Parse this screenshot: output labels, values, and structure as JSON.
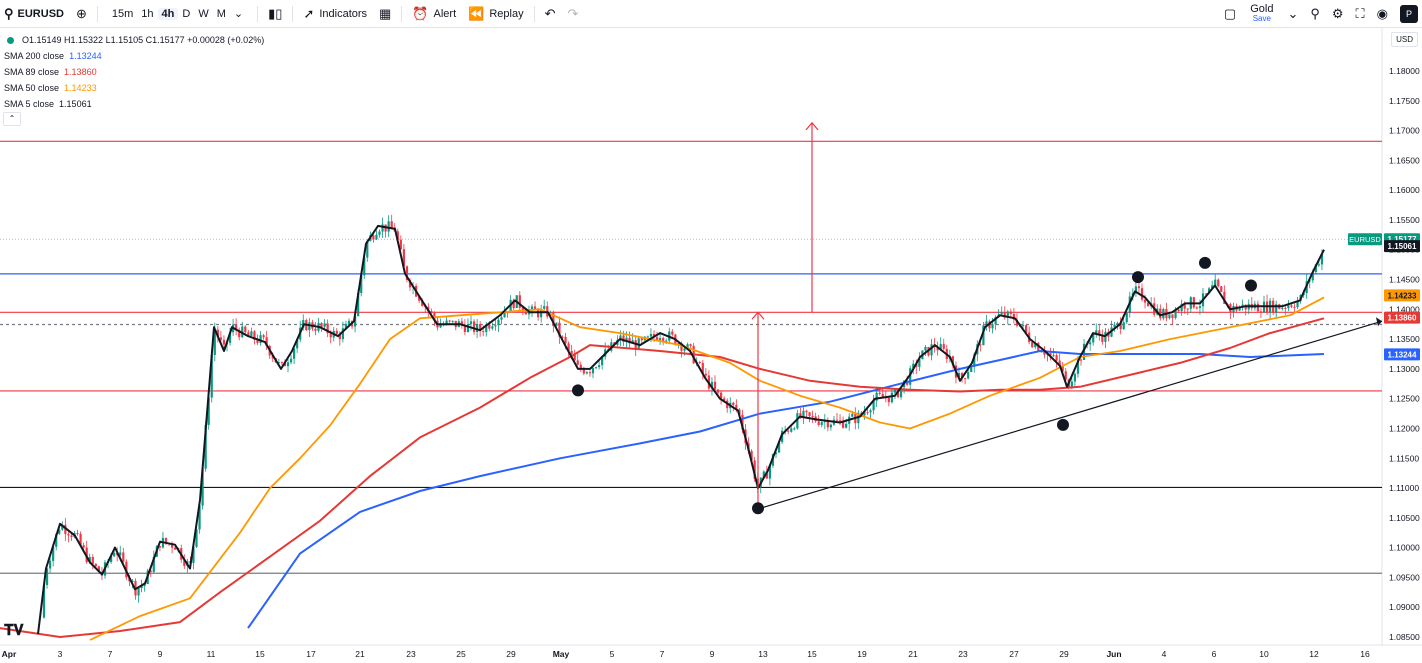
{
  "toolbar": {
    "symbol": "EURUSD",
    "intervals": [
      "15m",
      "1h",
      "4h",
      "D",
      "W",
      "M"
    ],
    "active_interval": "4h",
    "indicators_label": "Indicators",
    "alert_label": "Alert",
    "replay_label": "Replay",
    "layout_name": "Gold",
    "save_label": "Save",
    "avatar_letter": "P"
  },
  "legend": {
    "ohlc": "O1.15149 H1.15322 L1.15105 C1.15177 +0.00028 (+0.02%)",
    "sma_rows": [
      {
        "label": "SMA 200 close",
        "value": "1.13244",
        "color": "#2962ff"
      },
      {
        "label": "SMA 89 close",
        "value": "1.13860",
        "color": "#e53935"
      },
      {
        "label": "SMA 50 close",
        "value": "1.14233",
        "color": "#ff9800"
      },
      {
        "label": "SMA 5 close",
        "value": "1.15061",
        "color": "#131722"
      }
    ]
  },
  "currency": "USD",
  "colors": {
    "up": "#089981",
    "down": "#f23645",
    "sma200": "#2962ff",
    "sma89": "#e53935",
    "sma50": "#ff9800",
    "sma5": "#131722"
  },
  "chart_data": {
    "type": "candlestick",
    "symbol": "EURUSD",
    "ylim": [
      1.0845,
      1.1865
    ],
    "y_ticks": [
      "1.18000",
      "1.17500",
      "1.17000",
      "1.16500",
      "1.16000",
      "1.15500",
      "1.15000",
      "1.14500",
      "1.14000",
      "1.13500",
      "1.13000",
      "1.12500",
      "1.12000",
      "1.11500",
      "1.11000",
      "1.10500",
      "1.10000",
      "1.09500",
      "1.09000",
      "1.08500"
    ],
    "x_ticks": [
      "Apr",
      "3",
      "7",
      "9",
      "11",
      "15",
      "17",
      "21",
      "23",
      "25",
      "29",
      "May",
      "5",
      "7",
      "9",
      "13",
      "15",
      "19",
      "21",
      "23",
      "27",
      "29",
      "Jun",
      "4",
      "6",
      "10",
      "12",
      "16"
    ],
    "close_path": [
      [
        0,
        1.0845
      ],
      [
        38,
        1.0855
      ],
      [
        46,
        1.0965
      ],
      [
        60,
        1.104
      ],
      [
        75,
        1.102
      ],
      [
        90,
        1.0975
      ],
      [
        102,
        1.0955
      ],
      [
        115,
        1.1
      ],
      [
        135,
        1.093
      ],
      [
        145,
        1.094
      ],
      [
        160,
        1.101
      ],
      [
        175,
        1.1005
      ],
      [
        190,
        1.0965
      ],
      [
        200,
        1.108
      ],
      [
        214,
        1.137
      ],
      [
        224,
        1.133
      ],
      [
        232,
        1.137
      ],
      [
        248,
        1.1355
      ],
      [
        265,
        1.1345
      ],
      [
        281,
        1.13
      ],
      [
        292,
        1.133
      ],
      [
        304,
        1.1375
      ],
      [
        320,
        1.137
      ],
      [
        338,
        1.1355
      ],
      [
        354,
        1.138
      ],
      [
        366,
        1.151
      ],
      [
        378,
        1.154
      ],
      [
        395,
        1.1535
      ],
      [
        405,
        1.146
      ],
      [
        420,
        1.142
      ],
      [
        437,
        1.1375
      ],
      [
        460,
        1.1375
      ],
      [
        480,
        1.1365
      ],
      [
        500,
        1.139
      ],
      [
        515,
        1.1415
      ],
      [
        530,
        1.1395
      ],
      [
        548,
        1.1395
      ],
      [
        565,
        1.134
      ],
      [
        578,
        1.13
      ],
      [
        590,
        1.13
      ],
      [
        605,
        1.1325
      ],
      [
        620,
        1.135
      ],
      [
        640,
        1.134
      ],
      [
        660,
        1.136
      ],
      [
        675,
        1.135
      ],
      [
        690,
        1.133
      ],
      [
        705,
        1.1285
      ],
      [
        720,
        1.125
      ],
      [
        738,
        1.123
      ],
      [
        747,
        1.1175
      ],
      [
        758,
        1.11
      ],
      [
        768,
        1.113
      ],
      [
        782,
        1.119
      ],
      [
        800,
        1.122
      ],
      [
        817,
        1.1215
      ],
      [
        840,
        1.121
      ],
      [
        860,
        1.122
      ],
      [
        875,
        1.125
      ],
      [
        895,
        1.1255
      ],
      [
        910,
        1.129
      ],
      [
        920,
        1.132
      ],
      [
        935,
        1.134
      ],
      [
        950,
        1.132
      ],
      [
        960,
        1.128
      ],
      [
        972,
        1.131
      ],
      [
        985,
        1.137
      ],
      [
        1000,
        1.139
      ],
      [
        1015,
        1.1385
      ],
      [
        1030,
        1.135
      ],
      [
        1045,
        1.133
      ],
      [
        1060,
        1.1305
      ],
      [
        1067,
        1.127
      ],
      [
        1080,
        1.132
      ],
      [
        1093,
        1.136
      ],
      [
        1105,
        1.1355
      ],
      [
        1120,
        1.1375
      ],
      [
        1135,
        1.143
      ],
      [
        1145,
        1.142
      ],
      [
        1160,
        1.139
      ],
      [
        1172,
        1.1395
      ],
      [
        1185,
        1.141
      ],
      [
        1200,
        1.141
      ],
      [
        1215,
        1.144
      ],
      [
        1230,
        1.14
      ],
      [
        1245,
        1.1405
      ],
      [
        1262,
        1.1405
      ],
      [
        1282,
        1.1405
      ],
      [
        1300,
        1.1415
      ],
      [
        1312,
        1.146
      ],
      [
        1324,
        1.15
      ]
    ],
    "sma200": [
      [
        248,
        1.0865
      ],
      [
        300,
        1.099
      ],
      [
        360,
        1.106
      ],
      [
        420,
        1.1095
      ],
      [
        480,
        1.112
      ],
      [
        560,
        1.115
      ],
      [
        640,
        1.1175
      ],
      [
        700,
        1.1195
      ],
      [
        760,
        1.1225
      ],
      [
        830,
        1.1245
      ],
      [
        900,
        1.1275
      ],
      [
        960,
        1.13
      ],
      [
        1000,
        1.1315
      ],
      [
        1040,
        1.133
      ],
      [
        1080,
        1.1325
      ],
      [
        1140,
        1.1325
      ],
      [
        1200,
        1.1325
      ],
      [
        1250,
        1.132
      ],
      [
        1324,
        1.1325
      ]
    ],
    "sma89": [
      [
        0,
        1.0865
      ],
      [
        60,
        1.085
      ],
      [
        120,
        1.086
      ],
      [
        180,
        1.0875
      ],
      [
        220,
        1.0925
      ],
      [
        270,
        1.0985
      ],
      [
        320,
        1.1045
      ],
      [
        370,
        1.112
      ],
      [
        420,
        1.1185
      ],
      [
        480,
        1.1235
      ],
      [
        530,
        1.1285
      ],
      [
        570,
        1.132
      ],
      [
        590,
        1.134
      ],
      [
        660,
        1.133
      ],
      [
        720,
        1.132
      ],
      [
        760,
        1.13
      ],
      [
        810,
        1.128
      ],
      [
        860,
        1.127
      ],
      [
        910,
        1.1265
      ],
      [
        960,
        1.1262
      ],
      [
        1000,
        1.1265
      ],
      [
        1040,
        1.1265
      ],
      [
        1080,
        1.127
      ],
      [
        1130,
        1.129
      ],
      [
        1180,
        1.131
      ],
      [
        1230,
        1.1335
      ],
      [
        1270,
        1.136
      ],
      [
        1324,
        1.1385
      ]
    ],
    "sma50": [
      [
        90,
        1.0845
      ],
      [
        140,
        1.0885
      ],
      [
        190,
        1.0915
      ],
      [
        240,
        1.1025
      ],
      [
        270,
        1.11
      ],
      [
        300,
        1.115
      ],
      [
        330,
        1.1205
      ],
      [
        360,
        1.1275
      ],
      [
        390,
        1.135
      ],
      [
        420,
        1.1385
      ],
      [
        460,
        1.139
      ],
      [
        500,
        1.1395
      ],
      [
        540,
        1.14
      ],
      [
        580,
        1.137
      ],
      [
        620,
        1.136
      ],
      [
        680,
        1.134
      ],
      [
        730,
        1.131
      ],
      [
        760,
        1.128
      ],
      [
        800,
        1.1255
      ],
      [
        840,
        1.1235
      ],
      [
        880,
        1.121
      ],
      [
        910,
        1.12
      ],
      [
        950,
        1.1225
      ],
      [
        990,
        1.1255
      ],
      [
        1040,
        1.1285
      ],
      [
        1080,
        1.132
      ],
      [
        1120,
        1.133
      ],
      [
        1170,
        1.135
      ],
      [
        1230,
        1.137
      ],
      [
        1290,
        1.139
      ],
      [
        1324,
        1.142
      ]
    ],
    "horizontal_levels": [
      {
        "price": 1.1682,
        "color": "#f23645"
      },
      {
        "price": 1.14595,
        "color": "#2962ff"
      },
      {
        "price": 1.1395,
        "color": "#f23645"
      },
      {
        "price": 1.13745,
        "color": "#787b86",
        "dashed": true
      },
      {
        "price": 1.1263,
        "color": "#f23645"
      },
      {
        "price": 1.1101,
        "color": "#131722"
      },
      {
        "price": 1.0957,
        "color": "#787b86"
      }
    ],
    "trendline": [
      [
        758,
        1.1065
      ],
      [
        1382,
        1.138
      ]
    ],
    "swing_dots": [
      [
        578,
        1.1264
      ],
      [
        758,
        1.1066
      ],
      [
        1063,
        1.1206
      ],
      [
        1138,
        1.1454
      ],
      [
        1205,
        1.1478
      ],
      [
        1251,
        1.144
      ]
    ],
    "arrows": [
      {
        "x": 812,
        "from": 1.1395,
        "to": 1.1713
      },
      {
        "x": 758,
        "from": 1.1066,
        "to": 1.1395
      }
    ],
    "price_labels": [
      {
        "price": 1.15177,
        "text": "1.15177",
        "bg": "#089981",
        "fg": "#ffffff",
        "tag": "EURUSD"
      },
      {
        "price": 1.15061,
        "text": "1.15061",
        "bg": "#131722",
        "fg": "#ffffff"
      },
      {
        "price": 1.14233,
        "text": "1.14233",
        "bg": "#ff9800",
        "fg": "#131722"
      },
      {
        "price": 1.1386,
        "text": "1.13860",
        "bg": "#e53935",
        "fg": "#ffffff"
      },
      {
        "price": 1.13244,
        "text": "1.13244",
        "bg": "#2962ff",
        "fg": "#ffffff"
      }
    ]
  }
}
